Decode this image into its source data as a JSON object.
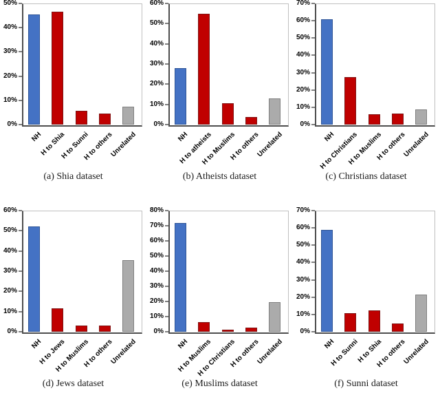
{
  "figure": {
    "background": "#FFFFFF",
    "description": "Six-panel bar chart figure"
  },
  "colors": {
    "nh_fill": "#4472C4",
    "nh_stroke": "#2F5597",
    "hate_fill": "#C00000",
    "hate_stroke": "#7F1414",
    "unrelated_fill": "#ABABAB",
    "unrelated_stroke": "#7F7F7F",
    "axis_dark": "#4D4D4D",
    "plot_border": "#BFBFBF",
    "tick": "#7F7F7F",
    "text": "#000000"
  },
  "chart_data": [
    {
      "type": "bar",
      "panel": "a",
      "title": "(a) Shia dataset",
      "categories": [
        "NH",
        "H to Shia",
        "H to Sunni",
        "H to others",
        "Unrelated"
      ],
      "values": [
        45.5,
        46.5,
        5.8,
        4.5,
        7.3
      ],
      "bar_roles": [
        "nh",
        "hate",
        "hate",
        "hate",
        "unrelated"
      ],
      "ylim": [
        0,
        50
      ],
      "ytick_labels": [
        "0%",
        "10%",
        "20%",
        "30%",
        "40%",
        "50%"
      ],
      "grid": false,
      "legend": null
    },
    {
      "type": "bar",
      "panel": "b",
      "title": "(b) Atheists dataset",
      "categories": [
        "NH",
        "H to atheists",
        "H to Muslims",
        "H to others",
        "Unrelated"
      ],
      "values": [
        28,
        55,
        10.5,
        3.6,
        13
      ],
      "bar_roles": [
        "nh",
        "hate",
        "hate",
        "hate",
        "unrelated"
      ],
      "ylim": [
        0,
        60
      ],
      "ytick_labels": [
        "0%",
        "10%",
        "20%",
        "30%",
        "40%",
        "50%",
        "60%"
      ],
      "grid": false,
      "legend": null
    },
    {
      "type": "bar",
      "panel": "c",
      "title": "(c) Christians dataset",
      "categories": [
        "NH",
        "H to Christians",
        "H to Muslims",
        "H to others",
        "Unrelated"
      ],
      "values": [
        61,
        27.3,
        6,
        6.2,
        8.8
      ],
      "bar_roles": [
        "nh",
        "hate",
        "hate",
        "hate",
        "unrelated"
      ],
      "ylim": [
        0,
        70
      ],
      "ytick_labels": [
        "0%",
        "10%",
        "20%",
        "30%",
        "40%",
        "50%",
        "60%",
        "70%"
      ],
      "grid": false,
      "legend": null
    },
    {
      "type": "bar",
      "panel": "d",
      "title": "(d) Jews dataset",
      "categories": [
        "NH",
        "H to Jews",
        "H to Muslims",
        "H to others",
        "Unrelated"
      ],
      "values": [
        52,
        11.5,
        3,
        3.2,
        35.5
      ],
      "bar_roles": [
        "nh",
        "hate",
        "hate",
        "hate",
        "unrelated"
      ],
      "ylim": [
        0,
        60
      ],
      "ytick_labels": [
        "0%",
        "10%",
        "20%",
        "30%",
        "40%",
        "50%",
        "60%"
      ],
      "grid": false,
      "legend": null
    },
    {
      "type": "bar",
      "panel": "e",
      "title": "(e) Muslims dataset",
      "categories": [
        "NH",
        "H to Muslims",
        "H to Christians",
        "H to others",
        "Unrelated"
      ],
      "values": [
        72,
        6.5,
        1.5,
        2.8,
        19.5
      ],
      "bar_roles": [
        "nh",
        "hate",
        "hate",
        "hate",
        "unrelated"
      ],
      "ylim": [
        0,
        80
      ],
      "ytick_labels": [
        "0%",
        "10%",
        "20%",
        "30%",
        "40%",
        "50%",
        "60%",
        "70%",
        "80%"
      ],
      "grid": false,
      "legend": null
    },
    {
      "type": "bar",
      "panel": "f",
      "title": "(f) Sunni dataset",
      "categories": [
        "NH",
        "H to Sunni",
        "H to Shia",
        "H to others",
        "Unrelated"
      ],
      "values": [
        59,
        10.7,
        12.3,
        4.6,
        21.5
      ],
      "bar_roles": [
        "nh",
        "hate",
        "hate",
        "hate",
        "unrelated"
      ],
      "ylim": [
        0,
        70
      ],
      "ytick_labels": [
        "0%",
        "10%",
        "20%",
        "30%",
        "40%",
        "50%",
        "60%",
        "70%"
      ],
      "grid": false,
      "legend": null
    }
  ]
}
